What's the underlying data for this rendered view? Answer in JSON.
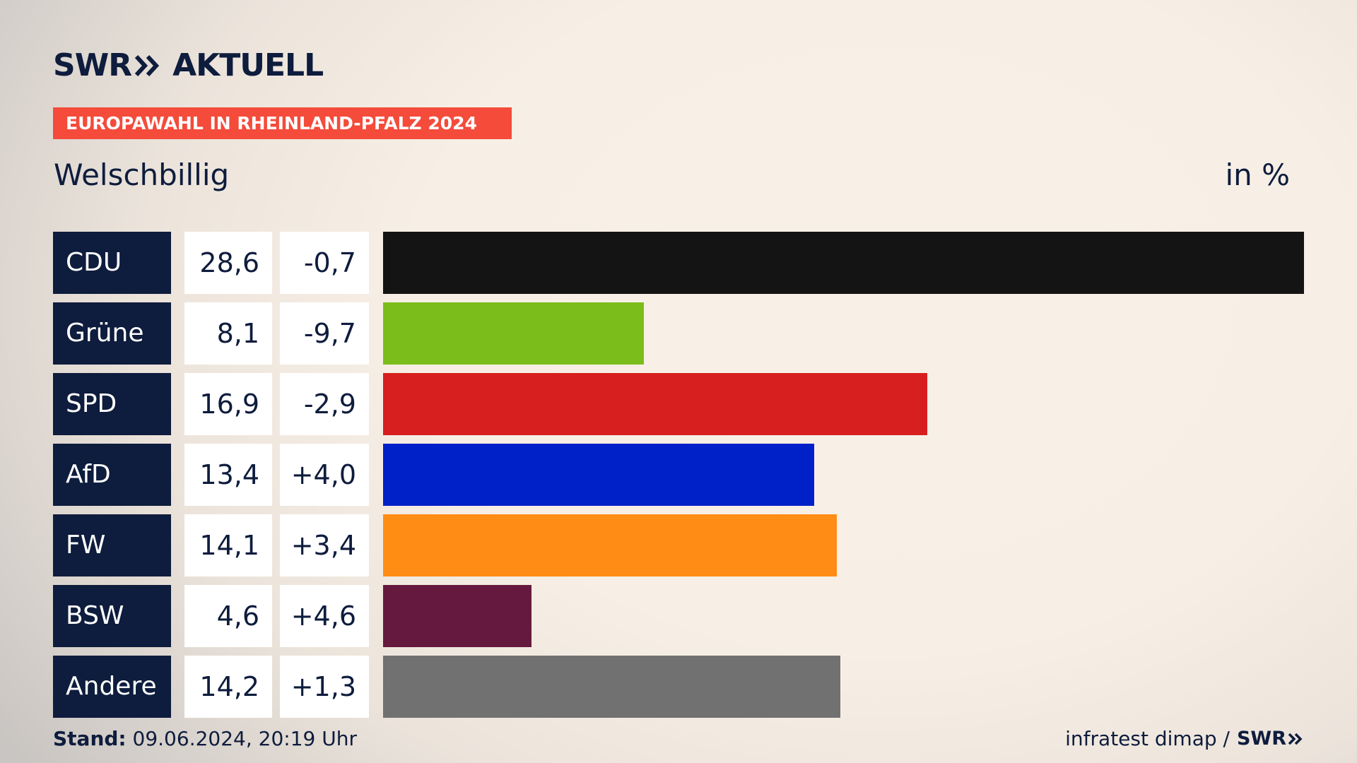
{
  "brand": {
    "name": "SWR",
    "product": "AKTUELL"
  },
  "banner": "EUROPAWAHL IN RHEINLAND-PFALZ 2024",
  "place": "Welschbillig",
  "unit": "in %",
  "chart_data": {
    "type": "bar",
    "orientation": "horizontal",
    "categories": [
      "CDU",
      "Grüne",
      "SPD",
      "AfD",
      "FW",
      "BSW",
      "Andere"
    ],
    "values": [
      28.6,
      8.1,
      16.9,
      13.4,
      14.1,
      4.6,
      14.2
    ],
    "value_labels": [
      "28,6",
      "8,1",
      "16,9",
      "13,4",
      "14,1",
      "4,6",
      "14,2"
    ],
    "change_labels": [
      "-0,7",
      "-9,7",
      "-2,9",
      "+4,0",
      "+3,4",
      "+4,6",
      "+1,3"
    ],
    "changes": [
      -0.7,
      -9.7,
      -2.9,
      4.0,
      3.4,
      4.6,
      1.3
    ],
    "colors": [
      "#141414",
      "#7bbd1b",
      "#d71f1f",
      "#0021c8",
      "#ff8c14",
      "#66193e",
      "#717172"
    ],
    "xlim": [
      0,
      28.6
    ]
  },
  "footer": {
    "stand_label": "Stand:",
    "stand_value": "09.06.2024, 20:19 Uhr",
    "source": "infratest dimap /",
    "source_brand": "SWR"
  }
}
